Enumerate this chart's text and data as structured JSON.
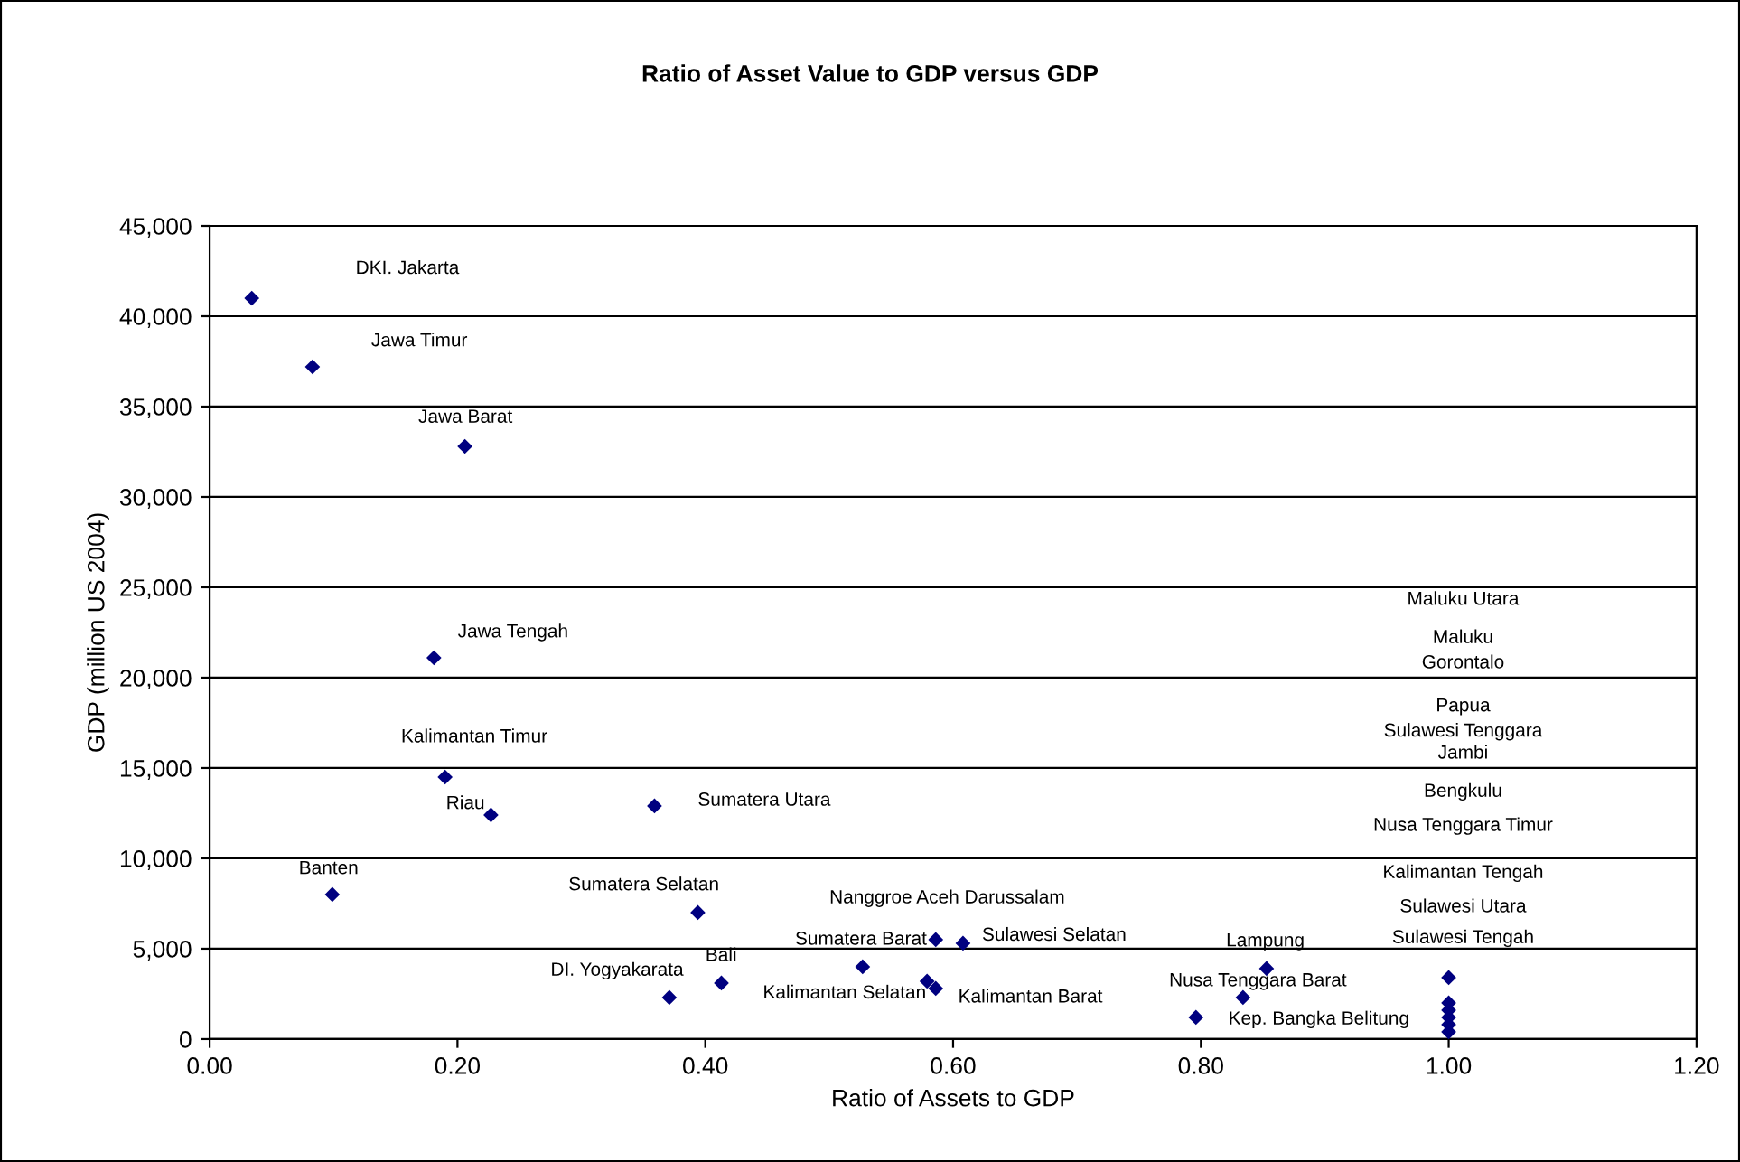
{
  "chart_data": {
    "type": "scatter",
    "title": "Ratio of Asset Value to GDP versus GDP",
    "xlabel": "Ratio of Assets to GDP",
    "ylabel": "GDP (million US 2004)",
    "xlim": [
      0,
      1.2
    ],
    "ylim": [
      0,
      45000
    ],
    "xticks": [
      {
        "value": 0,
        "label": "0.00"
      },
      {
        "value": 0.2,
        "label": "0.20"
      },
      {
        "value": 0.4,
        "label": "0.40"
      },
      {
        "value": 0.6,
        "label": "0.60"
      },
      {
        "value": 0.8,
        "label": "0.80"
      },
      {
        "value": 1.0,
        "label": "1.00"
      },
      {
        "value": 1.2,
        "label": "1.20"
      }
    ],
    "yticks": [
      0,
      {
        "value": 5000,
        "label": "5,000"
      },
      {
        "value": 10000,
        "label": "10,000"
      },
      {
        "value": 15000,
        "label": "15,000"
      },
      {
        "value": 20000,
        "label": "20,000"
      },
      {
        "value": 25000,
        "label": "25,000"
      },
      {
        "value": 30000,
        "label": "30,000"
      },
      {
        "value": 35000,
        "label": "35,000"
      },
      {
        "value": 40000,
        "label": "40,000"
      },
      {
        "value": 45000,
        "label": "45,000"
      }
    ],
    "grid": "y",
    "legend": false,
    "marker": "diamond",
    "series": [
      {
        "color": "#000080",
        "x": [
          0.034,
          0.083,
          0.206,
          0.181,
          0.19,
          0.227,
          0.359,
          0.099,
          0.394,
          0.413,
          0.371,
          0.527,
          0.579,
          0.586,
          0.586,
          0.608,
          0.853,
          0.834,
          0.796,
          1.0,
          1.0,
          1.0,
          1.0,
          1.0,
          1.0
        ],
        "values": [
          41000,
          37200,
          32800,
          21100,
          14500,
          12400,
          12900,
          8000,
          7000,
          3100,
          2300,
          4000,
          3200,
          2800,
          5500,
          5300,
          3900,
          2300,
          1200,
          3400,
          2000,
          1600,
          1200,
          800,
          400
        ]
      }
    ],
    "annotations": [
      "DKI. Jakarta",
      "Jawa Timur",
      "Jawa Barat",
      "Jawa Tengah",
      "Kalimantan Timur",
      "Riau",
      "Sumatera Utara",
      "Banten",
      "Sumatera Selatan",
      "Bali",
      "DI. Yogyakarata",
      "Sumatera Barat",
      "Kalimantan Selatan",
      "Kalimantan Barat",
      "Nanggroe Aceh Darussalam",
      "Sulawesi Selatan",
      "Lampung",
      "Nusa Tenggara Barat",
      "Kep. Bangka Belitung",
      "Maluku Utara",
      "Maluku",
      "Gorontalo",
      "Papua",
      "Sulawesi Tenggara",
      "Jambi",
      "Bengkulu",
      "Nusa Tenggara Timur",
      "Kalimantan Tengah",
      "Sulawesi Utara",
      "Sulawesi Tengah"
    ]
  }
}
